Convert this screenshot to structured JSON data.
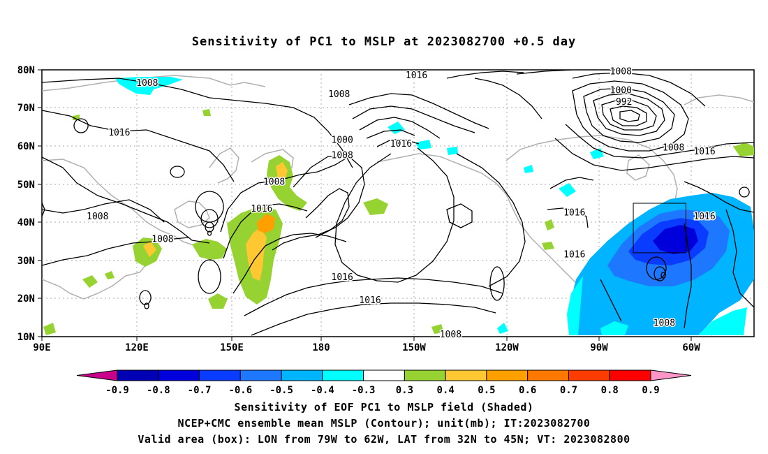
{
  "title": "Sensitivity of PC1 to MSLP at 2023082700 +0.5 day",
  "lat_labels": [
    "80N",
    "70N",
    "60N",
    "50N",
    "40N",
    "30N",
    "20N",
    "10N"
  ],
  "lon_labels": [
    "90E",
    "120E",
    "150E",
    "180",
    "150W",
    "120W",
    "90W",
    "60W"
  ],
  "contour_labels": [
    {
      "lon": 124,
      "lat": 76,
      "text": "1008"
    },
    {
      "lon": 115,
      "lat": 63,
      "text": "1016"
    },
    {
      "lon": 108,
      "lat": 41,
      "text": "1008"
    },
    {
      "lon": 129,
      "lat": 35,
      "text": "1008"
    },
    {
      "lon": 165,
      "lat": 50,
      "text": "1008"
    },
    {
      "lon": 161,
      "lat": 43,
      "text": "1016"
    },
    {
      "lon": 186,
      "lat": 73,
      "text": "1008"
    },
    {
      "lon": 211,
      "lat": 78,
      "text": "1016"
    },
    {
      "lon": 187,
      "lat": 61,
      "text": "1000"
    },
    {
      "lon": 187,
      "lat": 57,
      "text": "1008"
    },
    {
      "lon": 206,
      "lat": 60,
      "text": "1016"
    },
    {
      "lon": 196,
      "lat": 19,
      "text": "1016"
    },
    {
      "lon": 187,
      "lat": 25,
      "text": "1016"
    },
    {
      "lon": 277,
      "lat": 79,
      "text": "1008"
    },
    {
      "lon": 277,
      "lat": 74,
      "text": "1000"
    },
    {
      "lon": 278,
      "lat": 71,
      "text": "992"
    },
    {
      "lon": 262,
      "lat": 42,
      "text": "1016"
    },
    {
      "lon": 262,
      "lat": 31,
      "text": "1016"
    },
    {
      "lon": 294,
      "lat": 59,
      "text": "1008"
    },
    {
      "lon": 304,
      "lat": 58,
      "text": "1016"
    },
    {
      "lon": 291,
      "lat": 13,
      "text": "1008"
    },
    {
      "lon": 304,
      "lat": 41,
      "text": "1016"
    },
    {
      "lon": 222,
      "lat": 10,
      "text": "1008"
    }
  ],
  "colorbar": {
    "colors": [
      "#c8008c",
      "#0000b4",
      "#0000dc",
      "#0a3cff",
      "#1e78ff",
      "#00b4ff",
      "#00ffff",
      "#ffffff",
      "#96d232",
      "#ffc832",
      "#ffa000",
      "#ff7800",
      "#ff3c00",
      "#ff0000",
      "#ff96c8"
    ],
    "labels": [
      "-0.9",
      "-0.8",
      "-0.7",
      "-0.6",
      "-0.5",
      "-0.4",
      "-0.3",
      "0.3",
      "0.4",
      "0.5",
      "0.6",
      "0.7",
      "0.8",
      "0.9"
    ]
  },
  "captions": {
    "line1": "Sensitivity of EOF PC1 to MSLP field (Shaded)",
    "line2": "NCEP+CMC ensemble mean MSLP (Contour); unit(mb); IT:2023082700",
    "line3": "Valid area (box): LON from 79W to 62W, LAT from 32N to 45N; VT: 2023082800"
  },
  "valid_box": {
    "lon_min": 281,
    "lon_max": 298,
    "lat_min": 32,
    "lat_max": 45
  }
}
